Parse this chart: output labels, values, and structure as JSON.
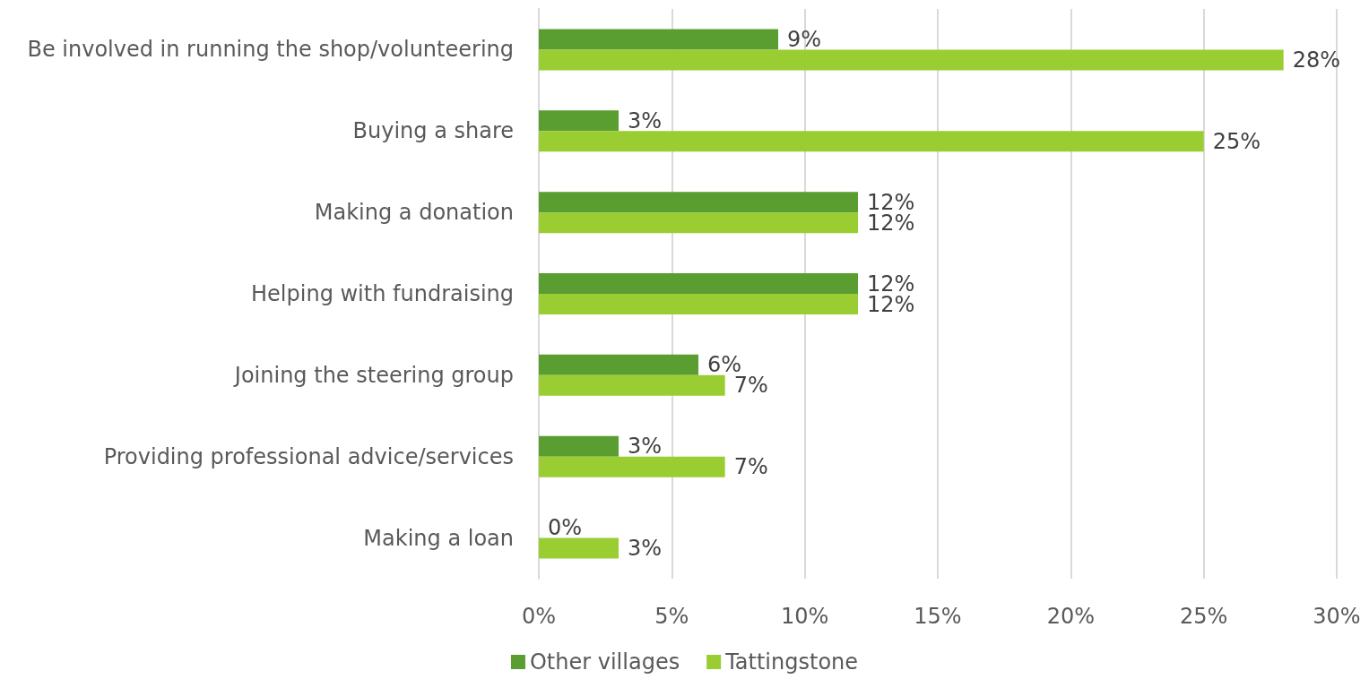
{
  "chart_data": {
    "type": "bar",
    "orientation": "horizontal",
    "categories": [
      "Be involved in running the shop/volunteering",
      "Buying a share",
      "Making a donation",
      "Helping with fundraising",
      "Joining the steering group",
      "Providing professional advice/services",
      "Making a loan"
    ],
    "series": [
      {
        "name": "Other villages",
        "color": "#5a9e32",
        "values": [
          9,
          3,
          12,
          12,
          6,
          3,
          0
        ],
        "value_labels": [
          "9%",
          "3%",
          "12%",
          "12%",
          "6%",
          "3%",
          "0%"
        ]
      },
      {
        "name": "Tattingstone",
        "color": "#9acd32",
        "values": [
          28,
          25,
          12,
          12,
          7,
          7,
          3
        ],
        "value_labels": [
          "28%",
          "25%",
          "12%",
          "12%",
          "7%",
          "7%",
          "3%"
        ]
      }
    ],
    "xlim": [
      0,
      30
    ],
    "xticks": [
      {
        "value": 0,
        "label": "0%"
      },
      {
        "value": 5,
        "label": "5%"
      },
      {
        "value": 10,
        "label": "10%"
      },
      {
        "value": 15,
        "label": "15%"
      },
      {
        "value": 20,
        "label": "20%"
      },
      {
        "value": 25,
        "label": "25%"
      },
      {
        "value": 30,
        "label": "30%"
      }
    ],
    "grid": "x",
    "legend": "bottom"
  }
}
